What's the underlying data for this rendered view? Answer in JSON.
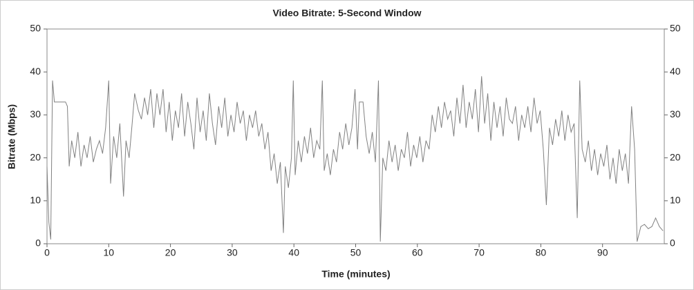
{
  "chart_data": {
    "type": "line",
    "title": "Video Bitrate: 5-Second Window",
    "xlabel": "Time (minutes)",
    "ylabel": "Bitrate (Mbps)",
    "color": "#808080",
    "xlim": [
      0,
      100
    ],
    "xticks": [
      0,
      10,
      20,
      30,
      40,
      50,
      60,
      70,
      80,
      90
    ],
    "ylim": [
      0,
      50
    ],
    "yticks": [
      0,
      10,
      20,
      30,
      40,
      50
    ],
    "y2lim": [
      0,
      50
    ],
    "y2ticks": [
      0,
      10,
      20,
      30,
      40,
      50
    ],
    "x": [
      0,
      0.3,
      0.6,
      0.9,
      1.2,
      2,
      3,
      3.3,
      3.6,
      4,
      4.5,
      5,
      5.5,
      6,
      6.5,
      7,
      7.5,
      8,
      8.5,
      9,
      9.5,
      10,
      10.3,
      10.8,
      11.3,
      11.8,
      12.4,
      12.8,
      13.3,
      13.8,
      14.2,
      14.8,
      15.3,
      15.8,
      16.3,
      16.8,
      17.3,
      17.8,
      18.3,
      18.8,
      19.3,
      19.8,
      20.3,
      20.8,
      21.3,
      21.8,
      22.3,
      22.8,
      23.3,
      23.8,
      24.3,
      24.8,
      25.3,
      25.8,
      26.3,
      26.8,
      27.3,
      27.8,
      28.3,
      28.8,
      29.3,
      29.8,
      30.3,
      30.8,
      31.3,
      31.8,
      32.3,
      32.8,
      33.3,
      33.8,
      34.3,
      34.8,
      35.3,
      35.8,
      36.3,
      36.8,
      37.3,
      37.8,
      38.3,
      38.6,
      39.1,
      39.6,
      39.9,
      40.2,
      40.7,
      41.2,
      41.7,
      42.2,
      42.7,
      43.2,
      43.7,
      44.2,
      44.6,
      44.9,
      45.4,
      45.9,
      46.4,
      46.9,
      47.4,
      47.9,
      48.4,
      48.9,
      49.4,
      49.9,
      50.3,
      50.6,
      51.2,
      51.7,
      52.2,
      52.7,
      53.2,
      53.7,
      54,
      54.4,
      54.9,
      55.4,
      55.9,
      56.4,
      56.9,
      57.4,
      57.9,
      58.4,
      58.9,
      59.4,
      59.9,
      60.4,
      60.9,
      61.4,
      61.9,
      62.4,
      62.9,
      63.4,
      63.9,
      64.4,
      64.9,
      65.4,
      65.9,
      66.4,
      66.9,
      67.4,
      67.9,
      68.4,
      68.9,
      69.4,
      69.9,
      70.4,
      70.9,
      71.4,
      71.9,
      72.4,
      72.9,
      73.4,
      73.9,
      74.4,
      74.9,
      75.4,
      75.9,
      76.4,
      76.9,
      77.4,
      77.9,
      78.4,
      78.9,
      79.4,
      79.9,
      80.4,
      80.9,
      81.4,
      81.9,
      82.4,
      82.9,
      83.4,
      83.9,
      84.4,
      84.9,
      85.4,
      85.9,
      86.3,
      86.7,
      87.2,
      87.7,
      88.2,
      88.7,
      89.2,
      89.7,
      90.2,
      90.7,
      91.2,
      91.7,
      92.2,
      92.7,
      93.2,
      93.7,
      94.2,
      94.7,
      95.2,
      95.6,
      96.2,
      96.8,
      97.4,
      98,
      98.6,
      99.2,
      99.8
    ],
    "values": [
      18,
      5,
      1,
      38,
      33,
      33,
      33,
      32,
      18,
      24,
      20,
      26,
      18,
      23,
      20,
      25,
      19,
      22,
      24,
      21,
      27,
      38,
      14,
      25,
      20,
      28,
      11,
      24,
      20,
      28,
      35,
      31,
      29,
      34,
      30,
      36,
      27,
      35,
      30,
      36,
      26,
      33,
      24,
      31,
      27,
      35,
      25,
      33,
      28,
      22,
      34,
      26,
      31,
      24,
      35,
      28,
      23,
      32,
      27,
      34,
      25,
      30,
      26,
      33,
      28,
      31,
      24,
      30,
      27,
      31,
      25,
      28,
      22,
      26,
      17,
      21,
      14,
      19,
      2.5,
      18,
      13,
      20,
      38,
      16,
      24,
      19,
      25,
      21,
      27,
      20,
      24,
      22,
      38,
      17,
      21,
      16,
      22,
      19,
      26,
      22,
      28,
      23,
      27,
      36,
      22,
      33,
      33,
      25,
      21,
      26,
      19,
      38,
      0.5,
      20,
      17,
      24,
      19,
      23,
      17,
      22,
      20,
      26,
      18,
      23,
      20,
      25,
      19,
      24,
      22,
      30,
      26,
      32,
      27,
      33,
      29,
      31,
      25,
      34,
      28,
      37,
      27,
      33,
      29,
      36,
      26,
      39,
      28,
      35,
      24,
      33,
      27,
      32,
      25,
      34,
      29,
      28,
      32,
      24,
      30,
      27,
      32,
      26,
      34,
      28,
      31,
      22,
      9,
      27,
      23,
      29,
      25,
      31,
      24,
      30,
      26,
      28,
      6,
      38,
      22,
      19,
      24,
      17,
      22,
      16,
      21,
      18,
      23,
      15,
      20,
      14,
      22,
      17,
      21,
      14,
      32,
      22,
      0.5,
      4,
      4.5,
      3.5,
      4,
      6,
      4,
      3
    ]
  }
}
